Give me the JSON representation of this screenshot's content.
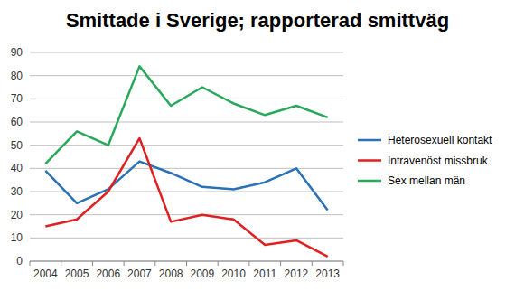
{
  "chart_data": {
    "type": "line",
    "title": "Smittade i Sverige; rapporterad smittväg",
    "categories": [
      "2004",
      "2005",
      "2006",
      "2007",
      "2008",
      "2009",
      "2010",
      "2011",
      "2012",
      "2013"
    ],
    "series": [
      {
        "name": "Heterosexuell kontakt",
        "color": "#2a72b8",
        "values": [
          39,
          25,
          31,
          43,
          38,
          32,
          31,
          34,
          40,
          22
        ]
      },
      {
        "name": "Intravenöst missbruk",
        "color": "#e02020",
        "values": [
          15,
          18,
          30,
          53,
          17,
          20,
          18,
          7,
          9,
          2
        ]
      },
      {
        "name": "Sex mellan män",
        "color": "#27a85a",
        "values": [
          42,
          56,
          50,
          84,
          67,
          75,
          68,
          63,
          67,
          62
        ]
      }
    ],
    "ylim": [
      0,
      90
    ],
    "yticks": [
      0,
      10,
      20,
      30,
      40,
      50,
      60,
      70,
      80,
      90
    ],
    "grid": true,
    "legend": "right"
  }
}
